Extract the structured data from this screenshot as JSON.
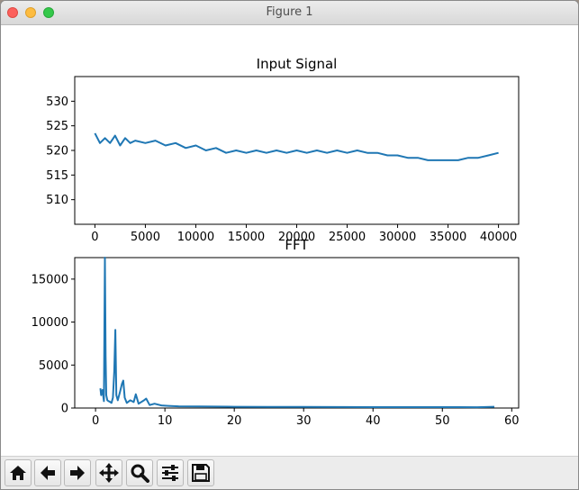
{
  "window": {
    "title": "Figure 1"
  },
  "toolbar": {
    "buttons": [
      {
        "name": "home-button",
        "icon": "home-icon"
      },
      {
        "name": "back-button",
        "icon": "arrow-left-icon"
      },
      {
        "name": "forward-button",
        "icon": "arrow-right-icon"
      },
      {
        "name": "pan-button",
        "icon": "move-icon"
      },
      {
        "name": "zoom-button",
        "icon": "magnifier-icon"
      },
      {
        "name": "subplots-button",
        "icon": "sliders-icon"
      },
      {
        "name": "save-button",
        "icon": "floppy-disk-icon"
      }
    ]
  },
  "chart_data": [
    {
      "type": "line",
      "title": "Input Signal",
      "xlabel": "",
      "ylabel": "",
      "xlim": [
        -2000,
        42000
      ],
      "ylim": [
        505,
        535
      ],
      "xticks": [
        0,
        5000,
        10000,
        15000,
        20000,
        25000,
        30000,
        35000,
        40000
      ],
      "xtick_labels": [
        "0",
        "5000",
        "10000",
        "15000",
        "20000",
        "25000",
        "30000",
        "35000",
        "40000"
      ],
      "yticks": [
        510,
        515,
        520,
        525,
        530
      ],
      "ytick_labels": [
        "510",
        "515",
        "520",
        "525",
        "530"
      ],
      "grid": false,
      "color": "#1f77b4",
      "series": [
        {
          "x": [
            0,
            500,
            1000,
            1500,
            2000,
            2500,
            3000,
            3500,
            4000,
            5000,
            6000,
            7000,
            8000,
            9000,
            10000,
            11000,
            12000,
            13000,
            14000,
            15000,
            16000,
            17000,
            18000,
            19000,
            20000,
            21000,
            22000,
            23000,
            24000,
            25000,
            26000,
            27000,
            28000,
            29000,
            30000,
            31000,
            32000,
            33000,
            34000,
            35000,
            36000,
            37000,
            38000,
            39000,
            40000
          ],
          "values": [
            523.5,
            521.5,
            522.5,
            521.5,
            523,
            521,
            522.5,
            521.5,
            522,
            521.5,
            522,
            521,
            521.5,
            520.5,
            521,
            520,
            520.5,
            519.5,
            520,
            519.5,
            520,
            519.5,
            520,
            519.5,
            520,
            519.5,
            520,
            519.5,
            520,
            519.5,
            520,
            519.5,
            519.5,
            519,
            519,
            518.5,
            518.5,
            518,
            518,
            518,
            518,
            518.5,
            518.5,
            519,
            519.5
          ]
        }
      ]
    },
    {
      "type": "line",
      "title": "FFT",
      "xlabel": "",
      "ylabel": "",
      "xlim": [
        -3,
        61
      ],
      "ylim": [
        0,
        17500
      ],
      "xticks": [
        0,
        10,
        20,
        30,
        40,
        50,
        60
      ],
      "xtick_labels": [
        "0",
        "10",
        "20",
        "30",
        "40",
        "50",
        "60"
      ],
      "yticks": [
        0,
        5000,
        10000,
        15000
      ],
      "ytick_labels": [
        "0",
        "5000",
        "10000",
        "15000"
      ],
      "grid": false,
      "color": "#1f77b4",
      "series": [
        {
          "x": [
            0.7,
            0.8,
            1.0,
            1.2,
            1.35,
            1.45,
            1.55,
            1.7,
            1.9,
            2.1,
            2.3,
            2.5,
            2.7,
            2.85,
            3.0,
            3.2,
            3.5,
            3.8,
            4.0,
            4.2,
            4.5,
            5.0,
            5.5,
            5.8,
            6.2,
            7.0,
            7.3,
            7.8,
            8.5,
            9.5,
            10.5,
            12,
            15,
            20,
            25,
            30,
            35,
            40,
            45,
            50,
            55,
            57.5
          ],
          "values": [
            2300,
            1500,
            2100,
            800,
            17500,
            6000,
            1500,
            900,
            800,
            700,
            600,
            1200,
            4300,
            9100,
            1500,
            900,
            1800,
            2800,
            3200,
            1200,
            600,
            900,
            700,
            1600,
            500,
            900,
            1100,
            350,
            500,
            300,
            250,
            200,
            180,
            150,
            140,
            130,
            120,
            110,
            100,
            100,
            90,
            150
          ]
        }
      ]
    }
  ]
}
